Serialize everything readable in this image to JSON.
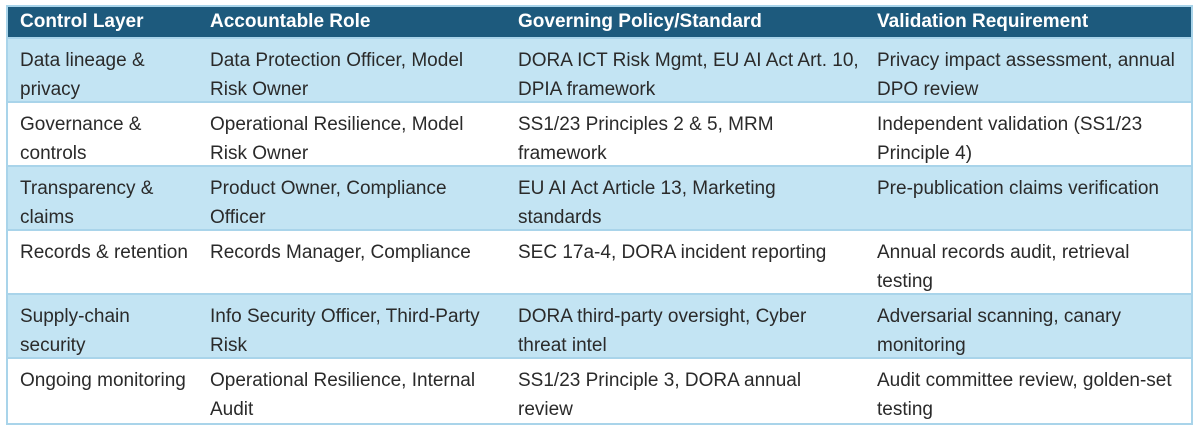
{
  "table": {
    "headers": [
      "Control Layer",
      "Accountable Role",
      "Governing Policy/Standard",
      "Validation Requirement"
    ],
    "rows": [
      [
        "Data lineage & privacy",
        "Data Protection Officer, Model Risk Owner",
        "DORA ICT Risk Mgmt, EU AI Act Art. 10, DPIA framework",
        "Privacy impact assessment, annual DPO review"
      ],
      [
        "Governance & controls",
        "Operational Resilience, Model Risk Owner",
        "SS1/23 Principles 2 & 5, MRM framework",
        "Independent validation (SS1/23 Principle 4)"
      ],
      [
        "Transparency & claims",
        "Product Owner, Compliance Officer",
        "EU AI Act Article 13, Marketing standards",
        "Pre-publication claims verification"
      ],
      [
        "Records & retention",
        "Records Manager, Compliance",
        "SEC 17a-4, DORA incident reporting",
        "Annual records audit, retrieval testing"
      ],
      [
        "Supply-chain security",
        "Info Security Officer, Third-Party Risk",
        "DORA third-party oversight, Cyber threat intel",
        "Adversarial scanning, canary monitoring"
      ],
      [
        "Ongoing monitoring",
        "Operational Resilience, Internal Audit",
        "SS1/23 Principle 3, DORA annual review",
        "Audit committee review, golden-set testing"
      ]
    ]
  },
  "colors": {
    "header_bg": "#1d5a7d",
    "header_text": "#ffffff",
    "shaded_row_bg": "#c3e4f3",
    "plain_row_bg": "#ffffff",
    "border": "#a9d4ea"
  }
}
